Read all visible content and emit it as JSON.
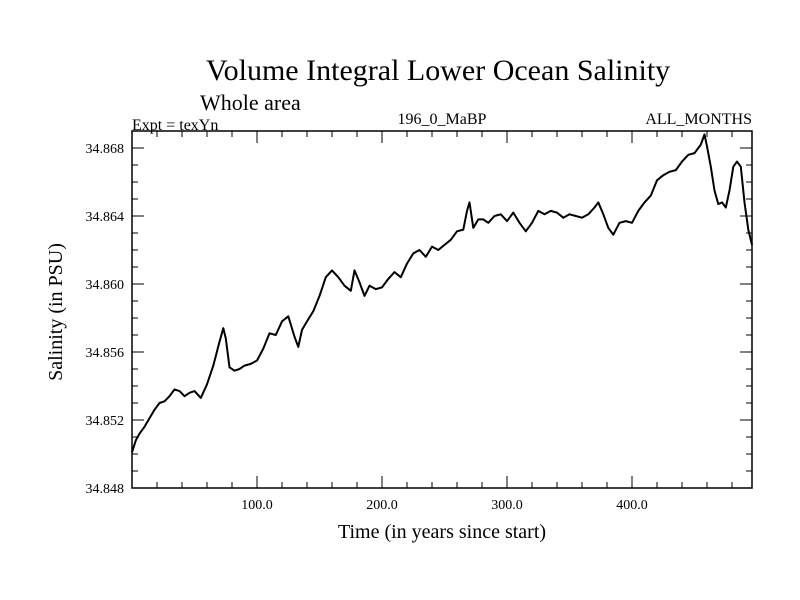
{
  "chart_data": {
    "type": "line",
    "title": "Volume Integral Lower Ocean Salinity",
    "subtitle": "Whole area",
    "left_label": "Expt = texYn",
    "center_label": "196_0_MaBP",
    "right_label": "ALL_MONTHS",
    "xlabel": "Time (in years since start)",
    "ylabel": "Salinity (in PSU)",
    "xlim": [
      0,
      496
    ],
    "ylim": [
      34.848,
      34.869
    ],
    "xticks": [
      100,
      200,
      300,
      400
    ],
    "xtick_labels": [
      "100.0",
      "200.0",
      "300.0",
      "400.0"
    ],
    "yticks": [
      34.848,
      34.852,
      34.856,
      34.86,
      34.864,
      34.868
    ],
    "ytick_labels": [
      "34.848",
      "34.852",
      "34.856",
      "34.860",
      "34.864",
      "34.868"
    ],
    "grid": false,
    "line_color": "#000000",
    "series": [
      {
        "x": [
          0,
          3,
          6,
          10,
          14,
          18,
          22,
          26,
          30,
          34,
          38,
          42,
          46,
          50,
          55,
          60,
          65,
          70,
          73,
          75,
          78,
          82,
          86,
          90,
          95,
          100,
          105,
          110,
          115,
          120,
          125,
          130,
          133,
          136,
          140,
          145,
          150,
          155,
          160,
          165,
          170,
          175,
          178,
          182,
          186,
          190,
          195,
          200,
          205,
          210,
          215,
          220,
          225,
          230,
          235,
          240,
          245,
          250,
          255,
          260,
          265,
          268,
          270,
          273,
          277,
          281,
          285,
          290,
          295,
          300,
          305,
          310,
          315,
          320,
          325,
          330,
          335,
          340,
          345,
          350,
          355,
          360,
          365,
          370,
          373,
          377,
          381,
          385,
          390,
          395,
          400,
          405,
          410,
          415,
          420,
          425,
          430,
          435,
          440,
          445,
          450,
          455,
          458,
          460,
          463,
          466,
          469,
          472,
          475,
          478,
          481,
          484,
          487,
          490,
          493,
          496
        ],
        "y": [
          34.8501,
          34.8508,
          34.8512,
          34.8516,
          34.8521,
          34.8526,
          34.853,
          34.8531,
          34.8534,
          34.8538,
          34.8537,
          34.8534,
          34.8536,
          34.8537,
          34.8533,
          34.8541,
          34.8552,
          34.8566,
          34.8574,
          34.8568,
          34.8551,
          34.8549,
          34.855,
          34.8552,
          34.8553,
          34.8555,
          34.8562,
          34.8571,
          34.857,
          34.8578,
          34.8581,
          34.8569,
          34.8563,
          34.8573,
          34.8578,
          34.8584,
          34.8593,
          34.8604,
          34.8608,
          34.8604,
          34.8599,
          34.8596,
          34.8608,
          34.8601,
          34.8593,
          34.8599,
          34.8597,
          34.8598,
          34.8603,
          34.8607,
          34.8604,
          34.8612,
          34.8618,
          34.862,
          34.8616,
          34.8622,
          34.862,
          34.8623,
          34.8626,
          34.8631,
          34.8632,
          34.8643,
          34.8648,
          34.8633,
          34.8638,
          34.8638,
          34.8636,
          34.864,
          34.8641,
          34.8637,
          34.8642,
          34.8636,
          34.8631,
          34.8636,
          34.8643,
          34.8641,
          34.8643,
          34.8642,
          34.8639,
          34.8641,
          34.864,
          34.8639,
          34.8641,
          34.8645,
          34.8648,
          34.8641,
          34.8633,
          34.8629,
          34.8636,
          34.8637,
          34.8636,
          34.8643,
          34.8648,
          34.8652,
          34.8661,
          34.8664,
          34.8666,
          34.8667,
          34.8672,
          34.8676,
          34.8677,
          34.8682,
          34.8688,
          34.8681,
          34.8669,
          34.8655,
          34.8647,
          34.8648,
          34.8645,
          34.8655,
          34.8669,
          34.8672,
          34.8669,
          34.8648,
          34.8632,
          34.8623
        ]
      }
    ]
  }
}
